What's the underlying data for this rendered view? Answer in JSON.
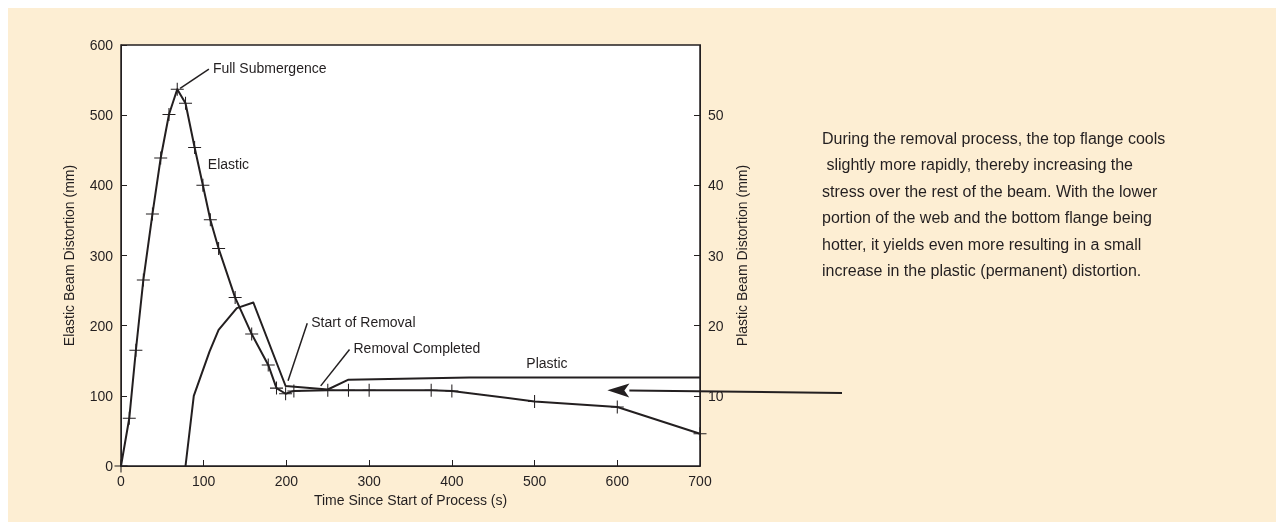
{
  "chart_data": {
    "type": "line",
    "xlabel": "Time Since Start of Process (s)",
    "ylabel": "Elastic Beam Distortion (mm)",
    "y2label": "Plastic Beam Distortion (mm)",
    "xlim": [
      0,
      700
    ],
    "xticks": [
      0,
      100,
      200,
      300,
      400,
      500,
      600,
      700
    ],
    "ylim": [
      0,
      600
    ],
    "yticks": [
      0,
      100,
      200,
      300,
      400,
      500,
      600
    ],
    "y2lim": [
      0,
      60
    ],
    "y2ticks": [
      10,
      20,
      30,
      40,
      50
    ],
    "grid": false,
    "legend": false,
    "series": [
      {
        "name": "Elastic",
        "color": "#231f20",
        "marker": "cross",
        "x": [
          0,
          10,
          18,
          27,
          38,
          48,
          58,
          68,
          78,
          89,
          99,
          108,
          118,
          138,
          158,
          178,
          188,
          199,
          209,
          250,
          275,
          300,
          375,
          400,
          500,
          600,
          700
        ],
        "values": [
          0,
          68,
          165,
          265,
          359,
          439,
          501,
          537,
          517,
          454,
          400,
          351,
          310,
          240,
          188,
          144,
          111,
          103,
          107,
          108,
          108,
          108,
          108,
          107,
          92,
          84,
          46
        ]
      },
      {
        "name": "Plastic",
        "color": "#231f20",
        "marker": "none",
        "axis": "y2",
        "x": [
          78,
          88,
          107,
          118,
          140,
          160,
          199,
          250,
          275,
          421,
          700
        ],
        "values": [
          0,
          10,
          16.3,
          19.4,
          22.5,
          23.3,
          11.4,
          10.9,
          12.3,
          12.6,
          12.6
        ]
      }
    ],
    "annotations": [
      {
        "text": "Full Submergence",
        "x": 70,
        "y": 537
      },
      {
        "text": "Start of Removal",
        "x": 201,
        "y": 118
      },
      {
        "text": "Removal Completed",
        "x": 240,
        "y": 112
      },
      "During the removal process, the top flange cools slightly more rapidly, thereby increasing the stress over the rest of the beam. With the lower portion of the web and the bottom flange being hotter, it yields even more resulting in a small increase in the plastic (permanent) distortion."
    ]
  }
}
